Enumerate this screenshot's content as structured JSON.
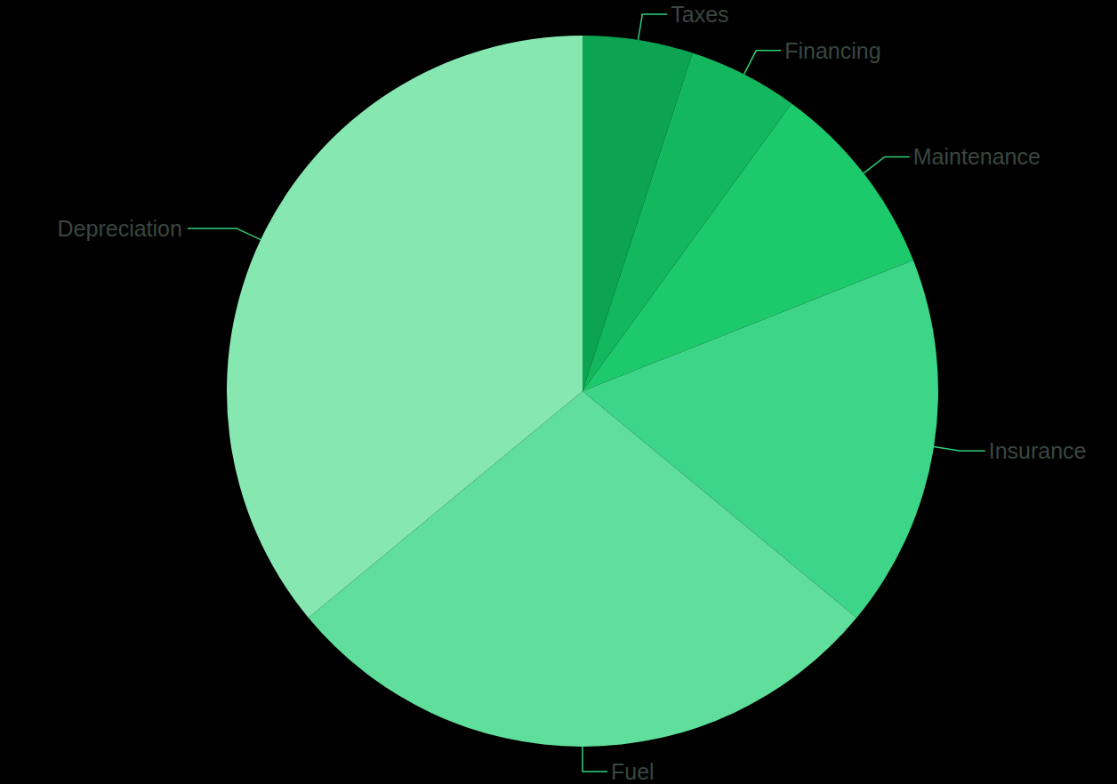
{
  "chart_data": {
    "type": "pie",
    "categories": [
      "Taxes",
      "Financing",
      "Maintenance",
      "Insurance",
      "Fuel",
      "Depreciation"
    ],
    "values": [
      5,
      5,
      9,
      17,
      28,
      36
    ],
    "colors": [
      "#0ca452",
      "#13b75e",
      "#1cc96b",
      "#3dd588",
      "#5fdf9b",
      "#86e7b1"
    ]
  }
}
